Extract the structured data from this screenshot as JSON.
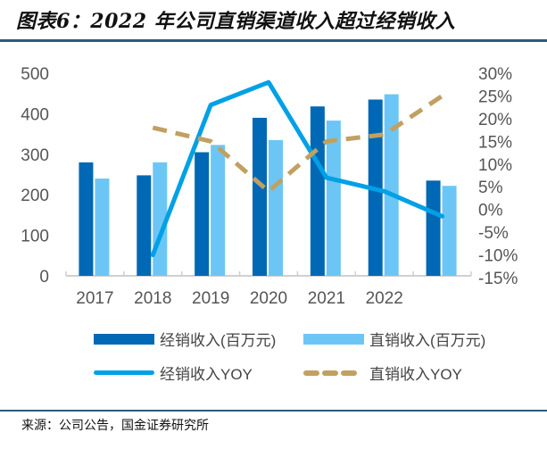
{
  "title": "图表6：2022 年公司直销渠道收入超过经销收入",
  "source": "来源：公司公告，国金证券研究所",
  "chart_data": {
    "type": "bar",
    "title": "图表6：2022 年公司直销渠道收入超过经销收入",
    "categories": [
      "2017",
      "2018",
      "2019",
      "2020",
      "2021",
      "2022",
      ""
    ],
    "x_tick_labels": [
      "2017",
      "2018",
      "2019",
      "2020",
      "2021",
      "2022"
    ],
    "left_axis": {
      "ylim": [
        0,
        500
      ],
      "ticks": [
        0,
        100,
        200,
        300,
        400,
        500
      ],
      "tick_labels": [
        "0",
        "100",
        "200",
        "300",
        "400",
        "500"
      ]
    },
    "right_axis": {
      "ylim": [
        -15,
        30
      ],
      "ticks": [
        -15,
        -10,
        -5,
        0,
        5,
        10,
        15,
        20,
        25,
        30
      ],
      "tick_labels": [
        "-15%",
        "-10%",
        "-5%",
        "0%",
        "5%",
        "10%",
        "15%",
        "20%",
        "25%",
        "30%"
      ]
    },
    "grid": false,
    "legend_position": "bottom",
    "series": [
      {
        "name": "经销收入(百万元)",
        "type": "bar",
        "axis": "left",
        "color": "#0068b5",
        "values": [
          280,
          248,
          305,
          390,
          418,
          435,
          235
        ]
      },
      {
        "name": "直销收入(百万元)",
        "type": "bar",
        "axis": "left",
        "color": "#6cc6f5",
        "values": [
          240,
          280,
          323,
          335,
          383,
          448,
          222
        ]
      },
      {
        "name": "经销收入YOY",
        "type": "line",
        "axis": "right",
        "style": "solid",
        "color": "#00a0e6",
        "values": [
          null,
          -10,
          23,
          28,
          7,
          4,
          -1.5
        ]
      },
      {
        "name": "直销收入YOY",
        "type": "line",
        "axis": "right",
        "style": "dashed",
        "color": "#c1a061",
        "values": [
          null,
          18,
          15,
          4,
          15,
          16.5,
          25
        ]
      }
    ]
  }
}
